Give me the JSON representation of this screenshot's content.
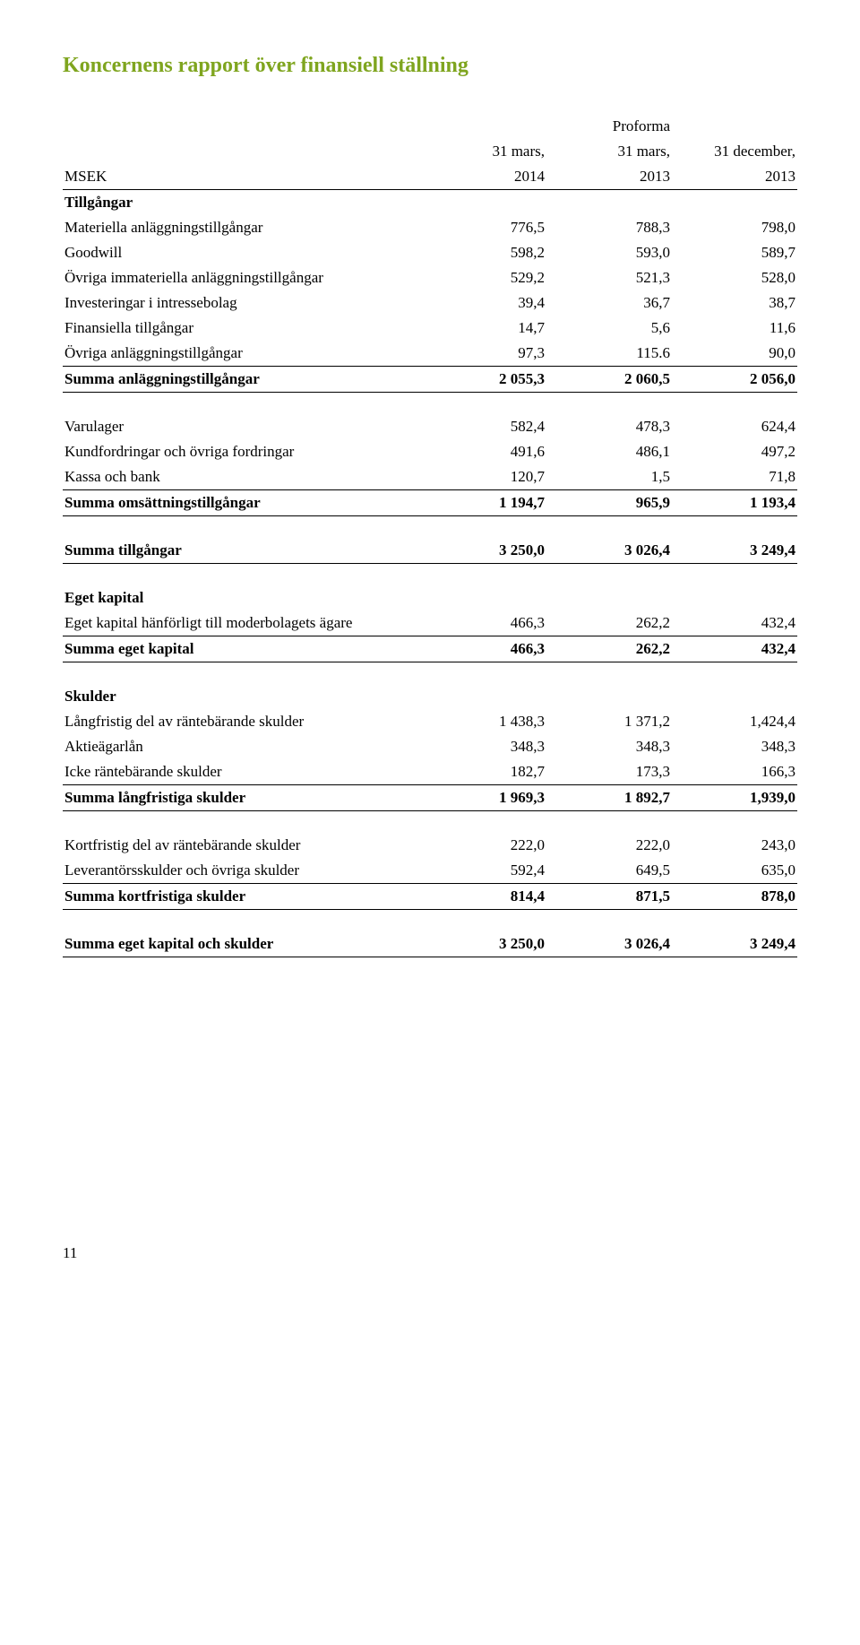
{
  "title": "Koncernens rapport över finansiell ställning",
  "colors": {
    "title": "#7fa51f",
    "text": "#000",
    "rule": "#000"
  },
  "header": {
    "rowLabel": "MSEK",
    "c1_top": "31 mars,",
    "c1_bot": "2014",
    "c2_top": "Proforma",
    "c2_mid": "31 mars,",
    "c2_bot": "2013",
    "c3_top": "31 december,",
    "c3_bot": "2013"
  },
  "sections": {
    "assets_head": "Tillgångar",
    "equity_head": "Eget kapital",
    "liab_head": "Skulder"
  },
  "rows": {
    "r1": {
      "l": "Materiella anläggningstillgångar",
      "a": "776,5",
      "b": "788,3",
      "c": "798,0"
    },
    "r2": {
      "l": "Goodwill",
      "a": "598,2",
      "b": "593,0",
      "c": "589,7"
    },
    "r3": {
      "l": "Övriga immateriella anläggningstillgångar",
      "a": "529,2",
      "b": "521,3",
      "c": "528,0"
    },
    "r4": {
      "l": "Investeringar i intressebolag",
      "a": "39,4",
      "b": "36,7",
      "c": "38,7"
    },
    "r5": {
      "l": "Finansiella tillgångar",
      "a": "14,7",
      "b": "5,6",
      "c": "11,6"
    },
    "r6": {
      "l": "Övriga anläggningstillgångar",
      "a": "97,3",
      "b": "115.6",
      "c": "90,0"
    },
    "r7": {
      "l": "Summa anläggningstillgångar",
      "a": "2 055,3",
      "b": "2 060,5",
      "c": "2 056,0"
    },
    "r8": {
      "l": "Varulager",
      "a": "582,4",
      "b": "478,3",
      "c": "624,4"
    },
    "r9": {
      "l": "Kundfordringar och övriga fordringar",
      "a": "491,6",
      "b": "486,1",
      "c": "497,2"
    },
    "r10": {
      "l": "Kassa och bank",
      "a": "120,7",
      "b": "1,5",
      "c": "71,8"
    },
    "r11": {
      "l": "Summa omsättningstillgångar",
      "a": "1 194,7",
      "b": "965,9",
      "c": "1 193,4"
    },
    "r12": {
      "l": "Summa tillgångar",
      "a": "3 250,0",
      "b": "3 026,4",
      "c": "3 249,4"
    },
    "r13": {
      "l": "Eget kapital hänförligt till moderbolagets ägare",
      "a": "466,3",
      "b": "262,2",
      "c": "432,4"
    },
    "r14": {
      "l": "Summa eget kapital",
      "a": "466,3",
      "b": "262,2",
      "c": "432,4"
    },
    "r15": {
      "l": "Långfristig del av räntebärande skulder",
      "a": "1 438,3",
      "b": "1 371,2",
      "c": "1,424,4"
    },
    "r16": {
      "l": "Aktieägarlån",
      "a": "348,3",
      "b": "348,3",
      "c": "348,3"
    },
    "r17": {
      "l": "Icke räntebärande skulder",
      "a": "182,7",
      "b": "173,3",
      "c": "166,3"
    },
    "r18": {
      "l": "Summa långfristiga skulder",
      "a": "1 969,3",
      "b": "1 892,7",
      "c": "1,939,0"
    },
    "r19": {
      "l": "Kortfristig del av räntebärande skulder",
      "a": "222,0",
      "b": "222,0",
      "c": "243,0"
    },
    "r20": {
      "l": "Leverantörsskulder och övriga skulder",
      "a": "592,4",
      "b": "649,5",
      "c": "635,0"
    },
    "r21": {
      "l": "Summa kortfristiga skulder",
      "a": "814,4",
      "b": "871,5",
      "c": "878,0"
    },
    "r22": {
      "l": "Summa eget kapital och skulder",
      "a": "3 250,0",
      "b": "3 026,4",
      "c": "3 249,4"
    }
  },
  "pageNumber": "11"
}
